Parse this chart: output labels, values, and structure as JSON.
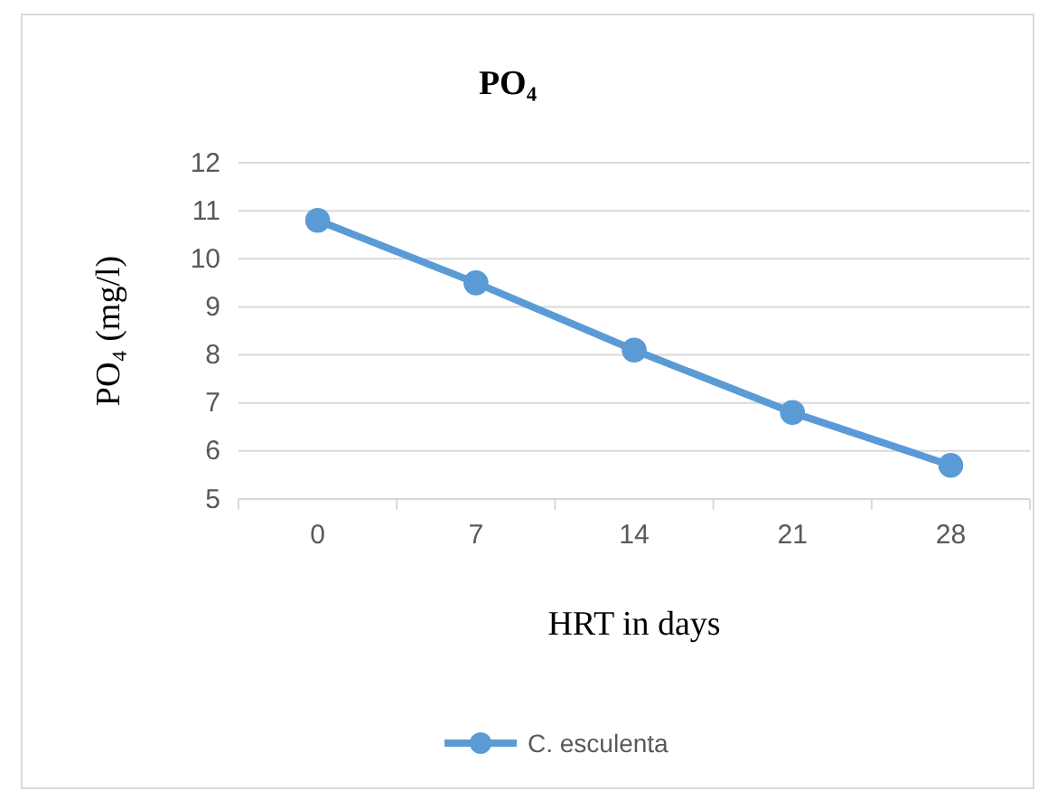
{
  "chart_data": {
    "type": "line",
    "title": "PO₄",
    "xlabel": "HRT in days",
    "ylabel": "PO₄ (mg/l)",
    "categories": [
      "0",
      "7",
      "14",
      "21",
      "28"
    ],
    "series": [
      {
        "name": "C. esculenta",
        "color": "#5b9bd5",
        "values": [
          10.8,
          9.5,
          8.1,
          6.8,
          5.7
        ]
      }
    ],
    "ylim": [
      5,
      12
    ],
    "yticks": [
      5,
      6,
      7,
      8,
      9,
      10,
      11,
      12
    ],
    "grid": "y",
    "legend": "bottom",
    "marker": "circle",
    "line_style": "solid"
  }
}
